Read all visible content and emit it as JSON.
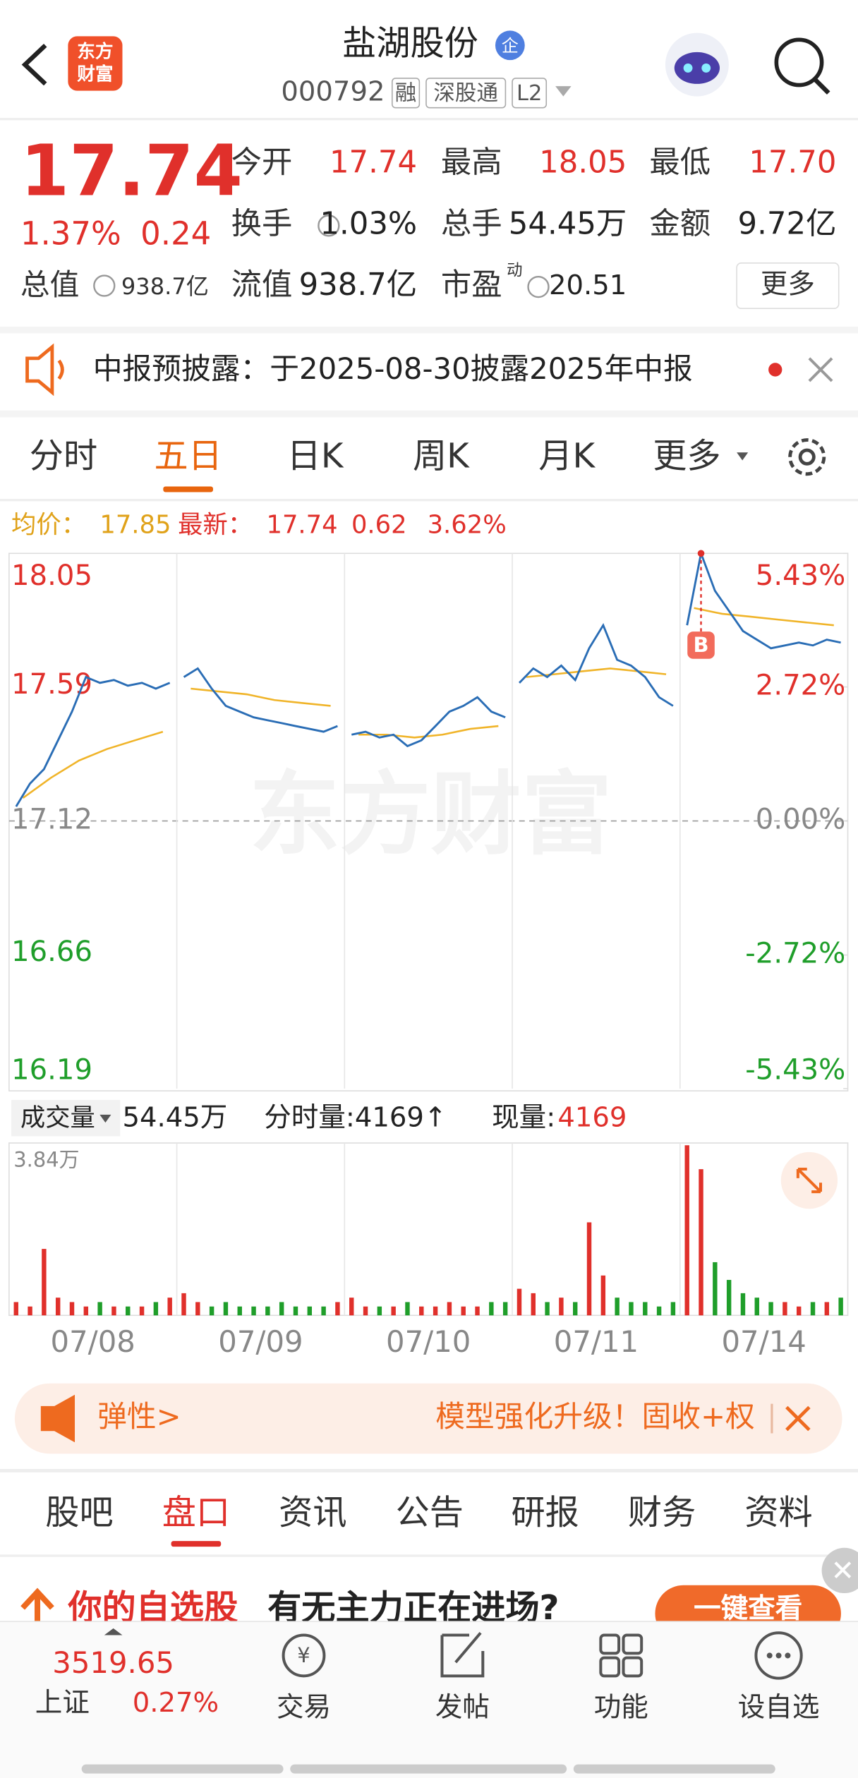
{
  "header": {
    "title": "盐湖股份",
    "badge": "企",
    "code": "000792",
    "tags": [
      "融",
      "深股通",
      "L2"
    ],
    "logo": [
      "东方",
      "财富"
    ]
  },
  "quote": {
    "price": "17.74",
    "change_pct": "1.37%",
    "change": "0.24",
    "total_value_label": "总值",
    "total_value": "938.7亿",
    "fields": [
      {
        "label": "今开",
        "value": "17.74"
      },
      {
        "label": "最高",
        "value": "18.05"
      },
      {
        "label": "最低",
        "value": "17.70"
      },
      {
        "label": "换手",
        "value": "1.03%"
      },
      {
        "label": "总手",
        "value": "54.45万"
      },
      {
        "label": "金额",
        "value": "9.72亿"
      },
      {
        "label": "流值",
        "value": "938.7亿"
      },
      {
        "label": "市盈",
        "sup": "动",
        "value": "20.51"
      }
    ],
    "more": "更多"
  },
  "notice": "中报预披露：于2025-08-30披露2025年中报",
  "tabs": [
    "分时",
    "五日",
    "日K",
    "周K",
    "月K",
    "更多"
  ],
  "active_tab": 1,
  "summary": {
    "avg_label": "均价：",
    "avg": "17.85",
    "latest_label": "最新：",
    "latest": "17.74",
    "change": "0.62",
    "pct": "3.62%"
  },
  "chart": {
    "watermark": "东方财富",
    "marker": "B",
    "ylim": [
      16.19,
      18.05
    ],
    "yticks": [
      18.05,
      17.59,
      17.12,
      16.66,
      16.19
    ],
    "y2lim": [
      -5.43,
      5.43
    ],
    "y2ticks": [
      {
        "value": 5.43,
        "label": "5.43%"
      },
      {
        "value": 2.72,
        "label": "2.72%"
      },
      {
        "value": 0,
        "label": "0.00%"
      },
      {
        "value": -2.72,
        "label": "-2.72%"
      },
      {
        "value": -5.43,
        "label": "-5.43%"
      }
    ],
    "days": [
      {
        "date": "07/08",
        "price": [
          17.17,
          17.25,
          17.3,
          17.4,
          17.5,
          17.62,
          17.6,
          17.61,
          17.59,
          17.6,
          17.58,
          17.6
        ],
        "avg": [
          17.2,
          17.27,
          17.33,
          17.37,
          17.4,
          17.43
        ],
        "volume": [
          0.3,
          0.2,
          1.5,
          0.4,
          0.3,
          0.2,
          0.3,
          0.2,
          0.2,
          0.2,
          0.3,
          0.4
        ]
      },
      {
        "date": "07/09",
        "price": [
          17.62,
          17.65,
          17.58,
          17.52,
          17.5,
          17.48,
          17.47,
          17.46,
          17.45,
          17.44,
          17.43,
          17.45
        ],
        "avg": [
          17.58,
          17.57,
          17.56,
          17.54,
          17.53,
          17.52
        ],
        "volume": [
          0.5,
          0.3,
          0.2,
          0.3,
          0.2,
          0.2,
          0.2,
          0.3,
          0.2,
          0.2,
          0.2,
          0.3
        ]
      },
      {
        "date": "07/10",
        "price": [
          17.42,
          17.43,
          17.41,
          17.42,
          17.38,
          17.4,
          17.45,
          17.5,
          17.52,
          17.55,
          17.5,
          17.48
        ],
        "avg": [
          17.42,
          17.42,
          17.41,
          17.42,
          17.44,
          17.45
        ],
        "volume": [
          0.4,
          0.2,
          0.2,
          0.2,
          0.3,
          0.2,
          0.2,
          0.3,
          0.2,
          0.2,
          0.3,
          0.3
        ]
      },
      {
        "date": "07/11",
        "price": [
          17.6,
          17.65,
          17.62,
          17.66,
          17.61,
          17.72,
          17.8,
          17.68,
          17.66,
          17.62,
          17.55,
          17.52
        ],
        "avg": [
          17.62,
          17.63,
          17.64,
          17.65,
          17.64,
          17.63
        ],
        "volume": [
          0.6,
          0.5,
          0.3,
          0.4,
          0.3,
          2.1,
          0.9,
          0.4,
          0.3,
          0.3,
          0.2,
          0.3
        ]
      },
      {
        "date": "07/14",
        "price": [
          17.8,
          18.05,
          17.92,
          17.85,
          17.78,
          17.75,
          17.72,
          17.73,
          17.74,
          17.73,
          17.75,
          17.74
        ],
        "avg": [
          17.86,
          17.84,
          17.83,
          17.82,
          17.81,
          17.8
        ],
        "volume": [
          3.84,
          3.3,
          1.2,
          0.8,
          0.5,
          0.4,
          0.3,
          0.3,
          0.2,
          0.3,
          0.3,
          0.4
        ]
      }
    ]
  },
  "volume": {
    "label": "成交量",
    "total": "54.45万",
    "tick_label": "分时量:4169↑",
    "now_label": "现量:",
    "now": "4169",
    "max_label": "3.84万",
    "vlim": [
      0,
      3.84
    ]
  },
  "banner": {
    "left": "弹性>",
    "right": "模型强化升级！固收+权"
  },
  "nav": [
    "股吧",
    "盘口",
    "资讯",
    "公告",
    "研报",
    "财务",
    "资料"
  ],
  "active_nav": 1,
  "ad": {
    "red": "你的自选股",
    "text": "有无主力正在进场?",
    "button": "一键查看"
  },
  "bottom": {
    "index_value": "3519.65",
    "index_name": "上证",
    "index_pct": "0.27%",
    "items": [
      "交易",
      "发帖",
      "功能",
      "设自选"
    ]
  }
}
